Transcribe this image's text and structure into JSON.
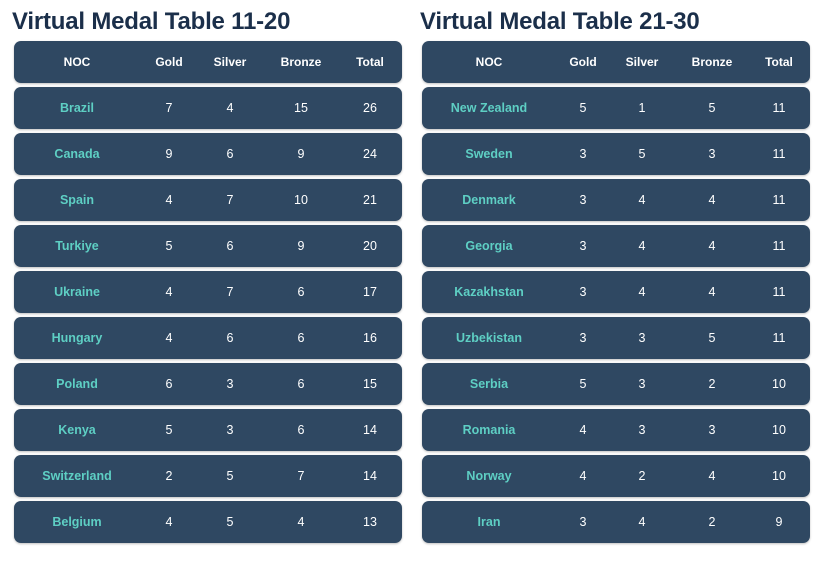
{
  "tables": [
    {
      "title": "Virtual Medal Table 11-20",
      "headers": {
        "noc": "NOC",
        "gold": "Gold",
        "silver": "Silver",
        "bronze": "Bronze",
        "total": "Total"
      },
      "rows": [
        {
          "noc": "Brazil",
          "gold": "7",
          "silver": "4",
          "bronze": "15",
          "total": "26"
        },
        {
          "noc": "Canada",
          "gold": "9",
          "silver": "6",
          "bronze": "9",
          "total": "24"
        },
        {
          "noc": "Spain",
          "gold": "4",
          "silver": "7",
          "bronze": "10",
          "total": "21"
        },
        {
          "noc": "Turkiye",
          "gold": "5",
          "silver": "6",
          "bronze": "9",
          "total": "20"
        },
        {
          "noc": "Ukraine",
          "gold": "4",
          "silver": "7",
          "bronze": "6",
          "total": "17"
        },
        {
          "noc": "Hungary",
          "gold": "4",
          "silver": "6",
          "bronze": "6",
          "total": "16"
        },
        {
          "noc": "Poland",
          "gold": "6",
          "silver": "3",
          "bronze": "6",
          "total": "15"
        },
        {
          "noc": "Kenya",
          "gold": "5",
          "silver": "3",
          "bronze": "6",
          "total": "14"
        },
        {
          "noc": "Switzerland",
          "gold": "2",
          "silver": "5",
          "bronze": "7",
          "total": "14"
        },
        {
          "noc": "Belgium",
          "gold": "4",
          "silver": "5",
          "bronze": "4",
          "total": "13"
        }
      ]
    },
    {
      "title": "Virtual Medal Table 21-30",
      "headers": {
        "noc": "NOC",
        "gold": "Gold",
        "silver": "Silver",
        "bronze": "Bronze",
        "total": "Total"
      },
      "rows": [
        {
          "noc": "New Zealand",
          "gold": "5",
          "silver": "1",
          "bronze": "5",
          "total": "11"
        },
        {
          "noc": "Sweden",
          "gold": "3",
          "silver": "5",
          "bronze": "3",
          "total": "11"
        },
        {
          "noc": "Denmark",
          "gold": "3",
          "silver": "4",
          "bronze": "4",
          "total": "11"
        },
        {
          "noc": "Georgia",
          "gold": "3",
          "silver": "4",
          "bronze": "4",
          "total": "11"
        },
        {
          "noc": "Kazakhstan",
          "gold": "3",
          "silver": "4",
          "bronze": "4",
          "total": "11"
        },
        {
          "noc": "Uzbekistan",
          "gold": "3",
          "silver": "3",
          "bronze": "5",
          "total": "11"
        },
        {
          "noc": "Serbia",
          "gold": "5",
          "silver": "3",
          "bronze": "2",
          "total": "10"
        },
        {
          "noc": "Romania",
          "gold": "4",
          "silver": "3",
          "bronze": "3",
          "total": "10"
        },
        {
          "noc": "Norway",
          "gold": "4",
          "silver": "2",
          "bronze": "4",
          "total": "10"
        },
        {
          "noc": "Iran",
          "gold": "3",
          "silver": "4",
          "bronze": "2",
          "total": "9"
        }
      ]
    }
  ],
  "colors": {
    "row_bg": "#2f4862",
    "country_text": "#5ecfc4",
    "title_text": "#1b2f4a"
  }
}
